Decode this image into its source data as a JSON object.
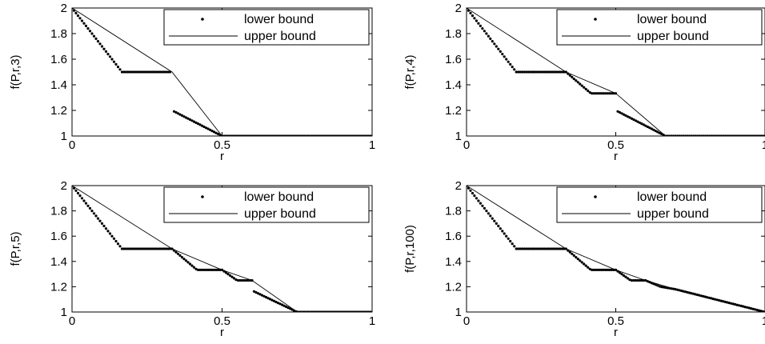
{
  "chart_data": [
    {
      "type": "scatter",
      "ylabel": "f(P,r,3)",
      "xlabel": "r",
      "xlim": [
        0,
        1
      ],
      "ylim": [
        1,
        2
      ],
      "xticks": [
        "0",
        "0.5",
        "1"
      ],
      "yticks": [
        "1",
        "1.2",
        "1.4",
        "1.6",
        "1.8",
        "2"
      ],
      "legend": {
        "position": "top-right",
        "entries": [
          "lower bound",
          "upper bound"
        ]
      },
      "lower": [
        [
          0,
          2
        ],
        [
          0.1667,
          1.5
        ],
        [
          0.3333,
          1.5
        ],
        [
          0.3334,
          1.5
        ],
        [
          0.3334,
          1.2
        ],
        [
          0.5,
          1.0
        ],
        [
          1,
          1.0
        ]
      ],
      "upper": [
        [
          0,
          2
        ],
        [
          0.3333,
          1.5
        ],
        [
          0.5,
          1.0
        ],
        [
          1,
          1.0
        ]
      ]
    },
    {
      "type": "scatter",
      "ylabel": "f(P,r,4)",
      "xlabel": "r",
      "xlim": [
        0,
        1
      ],
      "ylim": [
        1,
        2
      ],
      "xticks": [
        "0",
        "0.5",
        "1"
      ],
      "yticks": [
        "1",
        "1.2",
        "1.4",
        "1.6",
        "1.8",
        "2"
      ],
      "legend": {
        "position": "top-right",
        "entries": [
          "lower bound",
          "upper bound"
        ]
      },
      "lower": [
        [
          0,
          2
        ],
        [
          0.1667,
          1.5
        ],
        [
          0.3333,
          1.5
        ],
        [
          0.4167,
          1.333
        ],
        [
          0.5,
          1.333
        ],
        [
          0.5001,
          1.2
        ],
        [
          0.6667,
          1.0
        ],
        [
          1,
          1.0
        ]
      ],
      "upper": [
        [
          0,
          2
        ],
        [
          0.3333,
          1.5
        ],
        [
          0.5,
          1.333
        ],
        [
          0.6667,
          1.0
        ],
        [
          1,
          1.0
        ]
      ]
    },
    {
      "type": "scatter",
      "ylabel": "f(P,r,5)",
      "xlabel": "r",
      "xlim": [
        0,
        1
      ],
      "ylim": [
        1,
        2
      ],
      "xticks": [
        "0",
        "0.5",
        "1"
      ],
      "yticks": [
        "1",
        "1.2",
        "1.4",
        "1.6",
        "1.8",
        "2"
      ],
      "legend": {
        "position": "top-right",
        "entries": [
          "lower bound",
          "upper bound"
        ]
      },
      "lower": [
        [
          0,
          2
        ],
        [
          0.1667,
          1.5
        ],
        [
          0.3333,
          1.5
        ],
        [
          0.4167,
          1.333
        ],
        [
          0.5,
          1.333
        ],
        [
          0.55,
          1.25
        ],
        [
          0.6,
          1.25
        ],
        [
          0.6001,
          1.17
        ],
        [
          0.75,
          1.0
        ],
        [
          1,
          1.0
        ]
      ],
      "upper": [
        [
          0,
          2
        ],
        [
          0.3333,
          1.5
        ],
        [
          0.5,
          1.333
        ],
        [
          0.6,
          1.25
        ],
        [
          0.75,
          1.0
        ],
        [
          1,
          1.0
        ]
      ]
    },
    {
      "type": "scatter",
      "ylabel": "f(P,r,100)",
      "xlabel": "r",
      "xlim": [
        0,
        1
      ],
      "ylim": [
        1,
        2
      ],
      "xticks": [
        "0",
        "0.5",
        "1"
      ],
      "yticks": [
        "1",
        "1.2",
        "1.4",
        "1.6",
        "1.8",
        "2"
      ],
      "legend": {
        "position": "top-right",
        "entries": [
          "lower bound",
          "upper bound"
        ]
      },
      "lower": [
        [
          0,
          2
        ],
        [
          0.1667,
          1.5
        ],
        [
          0.3333,
          1.5
        ],
        [
          0.4167,
          1.333
        ],
        [
          0.5,
          1.333
        ],
        [
          0.55,
          1.25
        ],
        [
          0.6,
          1.25
        ],
        [
          0.65,
          1.2
        ],
        [
          0.7,
          1.18
        ],
        [
          0.8,
          1.12
        ],
        [
          0.9,
          1.06
        ],
        [
          1,
          1.0
        ]
      ],
      "upper": [
        [
          0,
          2
        ],
        [
          0.3333,
          1.5
        ],
        [
          0.5,
          1.333
        ],
        [
          0.6,
          1.25
        ],
        [
          0.7,
          1.18
        ],
        [
          0.8,
          1.12
        ],
        [
          0.9,
          1.06
        ],
        [
          1,
          1.0
        ]
      ]
    }
  ]
}
